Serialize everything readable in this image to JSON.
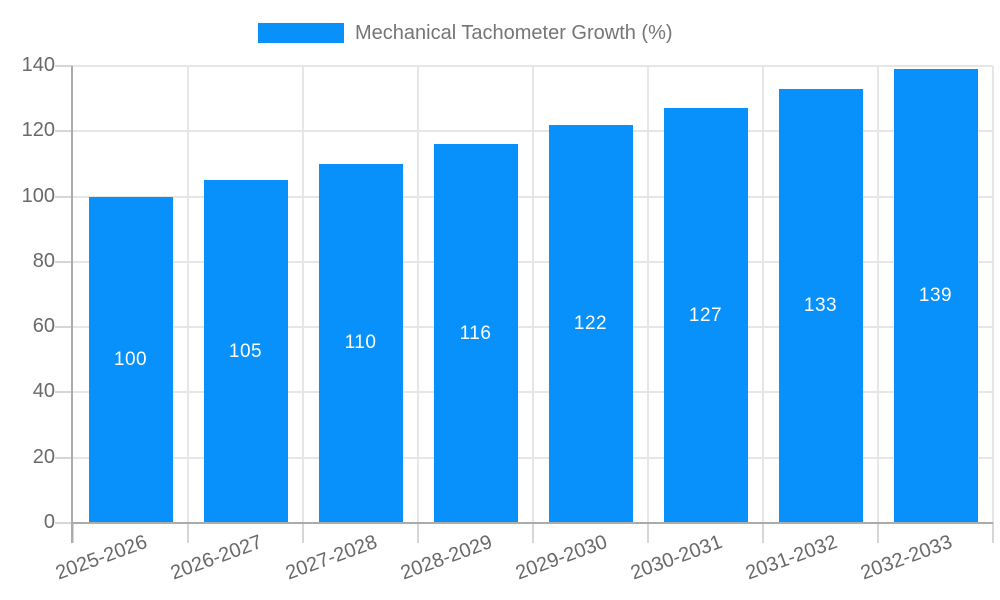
{
  "chart_data": {
    "type": "bar",
    "title": "Mechanical Tachometer Growth (%)",
    "categories": [
      "2025-2026",
      "2026-2027",
      "2027-2028",
      "2028-2029",
      "2029-2030",
      "2030-2031",
      "2031-2032",
      "2032-2033"
    ],
    "values": [
      100,
      105,
      110,
      116,
      122,
      127,
      133,
      139
    ],
    "value_labels": [
      "100",
      "105",
      "110",
      "116",
      "122",
      "127",
      "133",
      "139"
    ],
    "yticks": [
      0,
      20,
      40,
      60,
      80,
      100,
      120,
      140
    ],
    "ylim": [
      0,
      140
    ],
    "xlabel": "",
    "ylabel": "",
    "grid": "on",
    "legend_position": "top-center",
    "colors": {
      "bar": "#0991fb",
      "grid": "#e6e6e6",
      "axis": "#ababab",
      "tick": "#d6d6d6",
      "axis_text": "#696969",
      "legend_text": "#757575",
      "value_text": "#ffffff",
      "background": "#ffffff"
    }
  }
}
